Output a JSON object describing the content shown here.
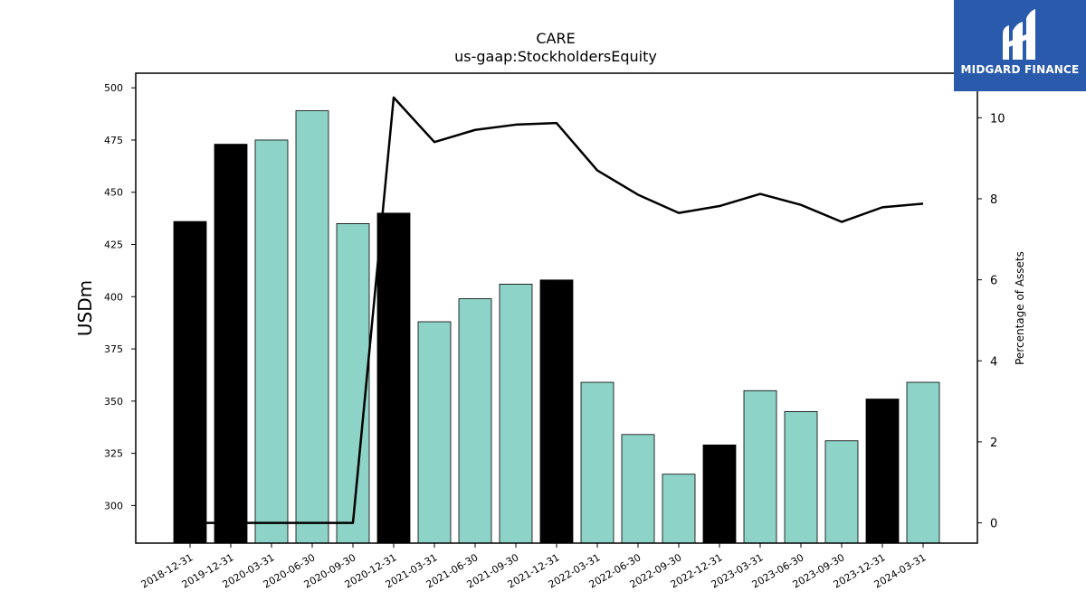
{
  "chart_data": {
    "type": "bar",
    "title": "CARE",
    "subtitle": "us-gaap:StockholdersEquity",
    "ylabel": "USDm",
    "y2label": "Percentage of Assets",
    "ylim": [
      282,
      507
    ],
    "y2lim": [
      -0.5,
      11.1
    ],
    "yticks": [
      300,
      325,
      350,
      375,
      400,
      425,
      450,
      475,
      500
    ],
    "y2ticks": [
      0,
      2,
      4,
      6,
      8,
      10
    ],
    "categories": [
      "2018-12-31",
      "2019-12-31",
      "2020-03-31",
      "2020-06-30",
      "2020-09-30",
      "2020-12-31",
      "2021-03-31",
      "2021-06-30",
      "2021-09-30",
      "2021-12-31",
      "2022-03-31",
      "2022-06-30",
      "2022-09-30",
      "2022-12-31",
      "2023-03-31",
      "2023-06-30",
      "2023-09-30",
      "2023-12-31",
      "2024-03-31"
    ],
    "series": [
      {
        "type": "bar",
        "values": [
          436,
          473,
          475,
          489,
          435,
          440,
          388,
          399,
          406,
          408,
          359,
          334,
          315,
          329,
          355,
          345,
          331,
          351,
          359
        ],
        "fiscal_year_end": [
          true,
          true,
          false,
          false,
          false,
          true,
          false,
          false,
          false,
          true,
          false,
          false,
          false,
          true,
          false,
          false,
          false,
          true,
          false
        ]
      },
      {
        "type": "line",
        "axis": "right",
        "values": [
          0,
          0,
          0,
          0,
          0,
          10.5,
          9.4,
          9.7,
          9.83,
          9.87,
          8.7,
          8.1,
          7.65,
          7.82,
          8.12,
          7.85,
          7.43,
          7.79,
          7.88
        ]
      }
    ],
    "colors": {
      "fiscal_year_end_bar": "#000000",
      "quarter_bar": "#8dd3c7",
      "line": "#000000"
    },
    "grid": false,
    "legend": "none"
  },
  "logo": {
    "text": "MIDGARD FINANCE",
    "icon": "midgard-logo-icon",
    "bg": "#2a5aab"
  }
}
